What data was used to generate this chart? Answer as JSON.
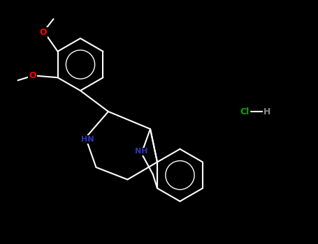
{
  "background_color": "#000000",
  "bond_color": "#ffffff",
  "O_color": "#ff0000",
  "N_color": "#3333bb",
  "Cl_color": "#00aa00",
  "H_color": "#888888",
  "bond_width": 1.5,
  "figsize": [
    4.55,
    3.5
  ],
  "dpi": 100,
  "font_size": 9,
  "NH_font_size": 8,
  "xlim": [
    0,
    9.1
  ],
  "ylim": [
    0,
    7.0
  ]
}
